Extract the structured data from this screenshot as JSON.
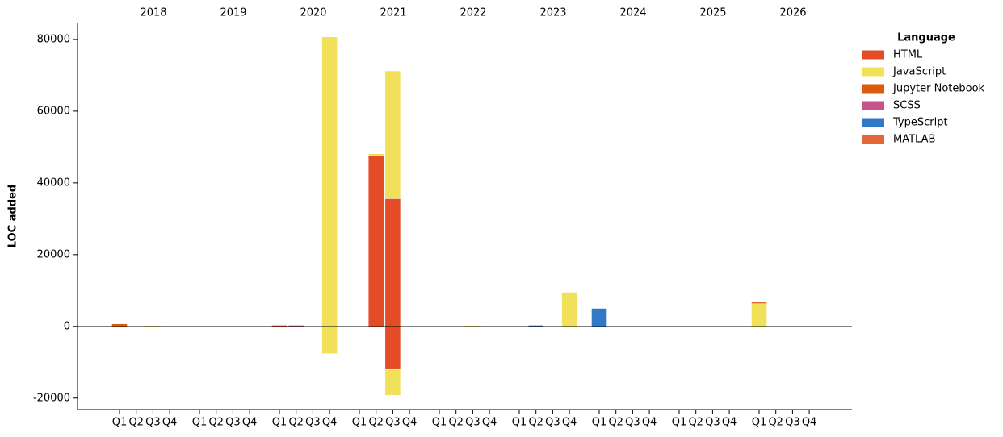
{
  "chart_data": {
    "type": "bar",
    "stacked": true,
    "y_label": "LOC added",
    "groups": [
      "2018",
      "2019",
      "2020",
      "2021",
      "2022",
      "2023",
      "2024",
      "2025",
      "2026"
    ],
    "categories": [
      "Q1",
      "Q2",
      "Q3",
      "Q4",
      "Q1",
      "Q2",
      "Q3",
      "Q4",
      "Q1",
      "Q2",
      "Q3",
      "Q4",
      "Q1",
      "Q2",
      "Q3",
      "Q4",
      "Q1",
      "Q2",
      "Q3",
      "Q4",
      "Q1",
      "Q2",
      "Q3",
      "Q4",
      "Q1",
      "Q2",
      "Q3",
      "Q4",
      "Q1",
      "Q2",
      "Q3",
      "Q4",
      "Q1",
      "Q2",
      "Q3",
      "Q4"
    ],
    "legend_title": "Language",
    "legend": "upper right outside",
    "series": [
      {
        "name": "HTML",
        "color": "#e34c26",
        "values": [
          0,
          0,
          0,
          0,
          0,
          0,
          0,
          0,
          300,
          0,
          0,
          0,
          0,
          47600,
          35600,
          0,
          0,
          0,
          0,
          0,
          0,
          0,
          0,
          0,
          0,
          0,
          0,
          0,
          0,
          0,
          0,
          0,
          0,
          0,
          0,
          0
        ],
        "removed": [
          0,
          0,
          0,
          0,
          0,
          0,
          0,
          0,
          0,
          0,
          0,
          0,
          0,
          0,
          -12000,
          0,
          0,
          0,
          0,
          0,
          0,
          0,
          0,
          0,
          0,
          0,
          0,
          0,
          0,
          0,
          0,
          0,
          0,
          0,
          0,
          0
        ]
      },
      {
        "name": "JavaScript",
        "color": "#f1e05a",
        "values": [
          0,
          0,
          200,
          0,
          0,
          0,
          0,
          0,
          0,
          0,
          0,
          80700,
          0,
          500,
          35600,
          0,
          0,
          0,
          200,
          0,
          0,
          0,
          0,
          9500,
          0,
          0,
          0,
          0,
          0,
          0,
          0,
          0,
          6300,
          0,
          0,
          0
        ],
        "removed": [
          0,
          0,
          0,
          0,
          0,
          0,
          0,
          0,
          0,
          0,
          0,
          -7600,
          0,
          0,
          -7200,
          0,
          0,
          0,
          0,
          0,
          0,
          0,
          0,
          0,
          0,
          0,
          0,
          0,
          0,
          0,
          0,
          0,
          0,
          0,
          0,
          0
        ]
      },
      {
        "name": "Jupyter Notebook",
        "color": "#da5b0b",
        "values": [
          700,
          0,
          0,
          0,
          0,
          0,
          0,
          0,
          0,
          0,
          0,
          0,
          0,
          0,
          0,
          0,
          0,
          0,
          0,
          0,
          0,
          0,
          0,
          0,
          0,
          0,
          0,
          0,
          0,
          0,
          0,
          0,
          0,
          0,
          0,
          0
        ],
        "removed": [
          0,
          0,
          0,
          0,
          0,
          0,
          0,
          0,
          0,
          0,
          0,
          0,
          0,
          0,
          0,
          0,
          0,
          0,
          0,
          0,
          0,
          0,
          0,
          0,
          0,
          0,
          0,
          0,
          0,
          0,
          0,
          0,
          0,
          0,
          0,
          0
        ]
      },
      {
        "name": "SCSS",
        "color": "#c6538c",
        "values": [
          0,
          0,
          0,
          0,
          0,
          0,
          0,
          0,
          0,
          300,
          0,
          0,
          0,
          0,
          0,
          0,
          0,
          0,
          0,
          0,
          0,
          0,
          0,
          0,
          0,
          0,
          0,
          0,
          0,
          0,
          0,
          0,
          0,
          0,
          0,
          0
        ],
        "removed": [
          0,
          0,
          0,
          0,
          0,
          0,
          0,
          0,
          0,
          0,
          0,
          0,
          0,
          0,
          0,
          0,
          0,
          0,
          0,
          0,
          0,
          0,
          0,
          0,
          0,
          0,
          0,
          0,
          0,
          0,
          0,
          0,
          0,
          0,
          0,
          0
        ]
      },
      {
        "name": "TypeScript",
        "color": "#3178c6",
        "values": [
          0,
          0,
          0,
          0,
          0,
          0,
          0,
          0,
          0,
          0,
          0,
          0,
          0,
          0,
          0,
          0,
          0,
          0,
          0,
          0,
          0,
          300,
          0,
          0,
          5000,
          0,
          0,
          0,
          0,
          0,
          0,
          0,
          0,
          0,
          0,
          0
        ],
        "removed": [
          0,
          0,
          0,
          0,
          0,
          0,
          0,
          0,
          0,
          0,
          0,
          0,
          0,
          0,
          0,
          0,
          0,
          0,
          0,
          0,
          0,
          0,
          0,
          0,
          0,
          0,
          0,
          0,
          0,
          0,
          0,
          0,
          0,
          0,
          0,
          0
        ]
      },
      {
        "name": "MATLAB",
        "color": "#e16737",
        "values": [
          0,
          0,
          0,
          0,
          0,
          0,
          0,
          0,
          0,
          0,
          0,
          0,
          0,
          0,
          0,
          0,
          0,
          0,
          0,
          0,
          0,
          0,
          0,
          0,
          0,
          0,
          0,
          0,
          0,
          0,
          0,
          0,
          500,
          0,
          0,
          0
        ],
        "removed": [
          0,
          0,
          0,
          0,
          0,
          0,
          0,
          0,
          0,
          0,
          0,
          0,
          0,
          0,
          0,
          0,
          0,
          0,
          0,
          0,
          0,
          0,
          0,
          0,
          0,
          0,
          0,
          0,
          0,
          0,
          0,
          0,
          0,
          0,
          0,
          0
        ]
      }
    ],
    "ylim": [
      -23200,
      84700
    ],
    "yticks": [
      -20000,
      0,
      20000,
      40000,
      60000,
      80000
    ],
    "grid": false
  }
}
